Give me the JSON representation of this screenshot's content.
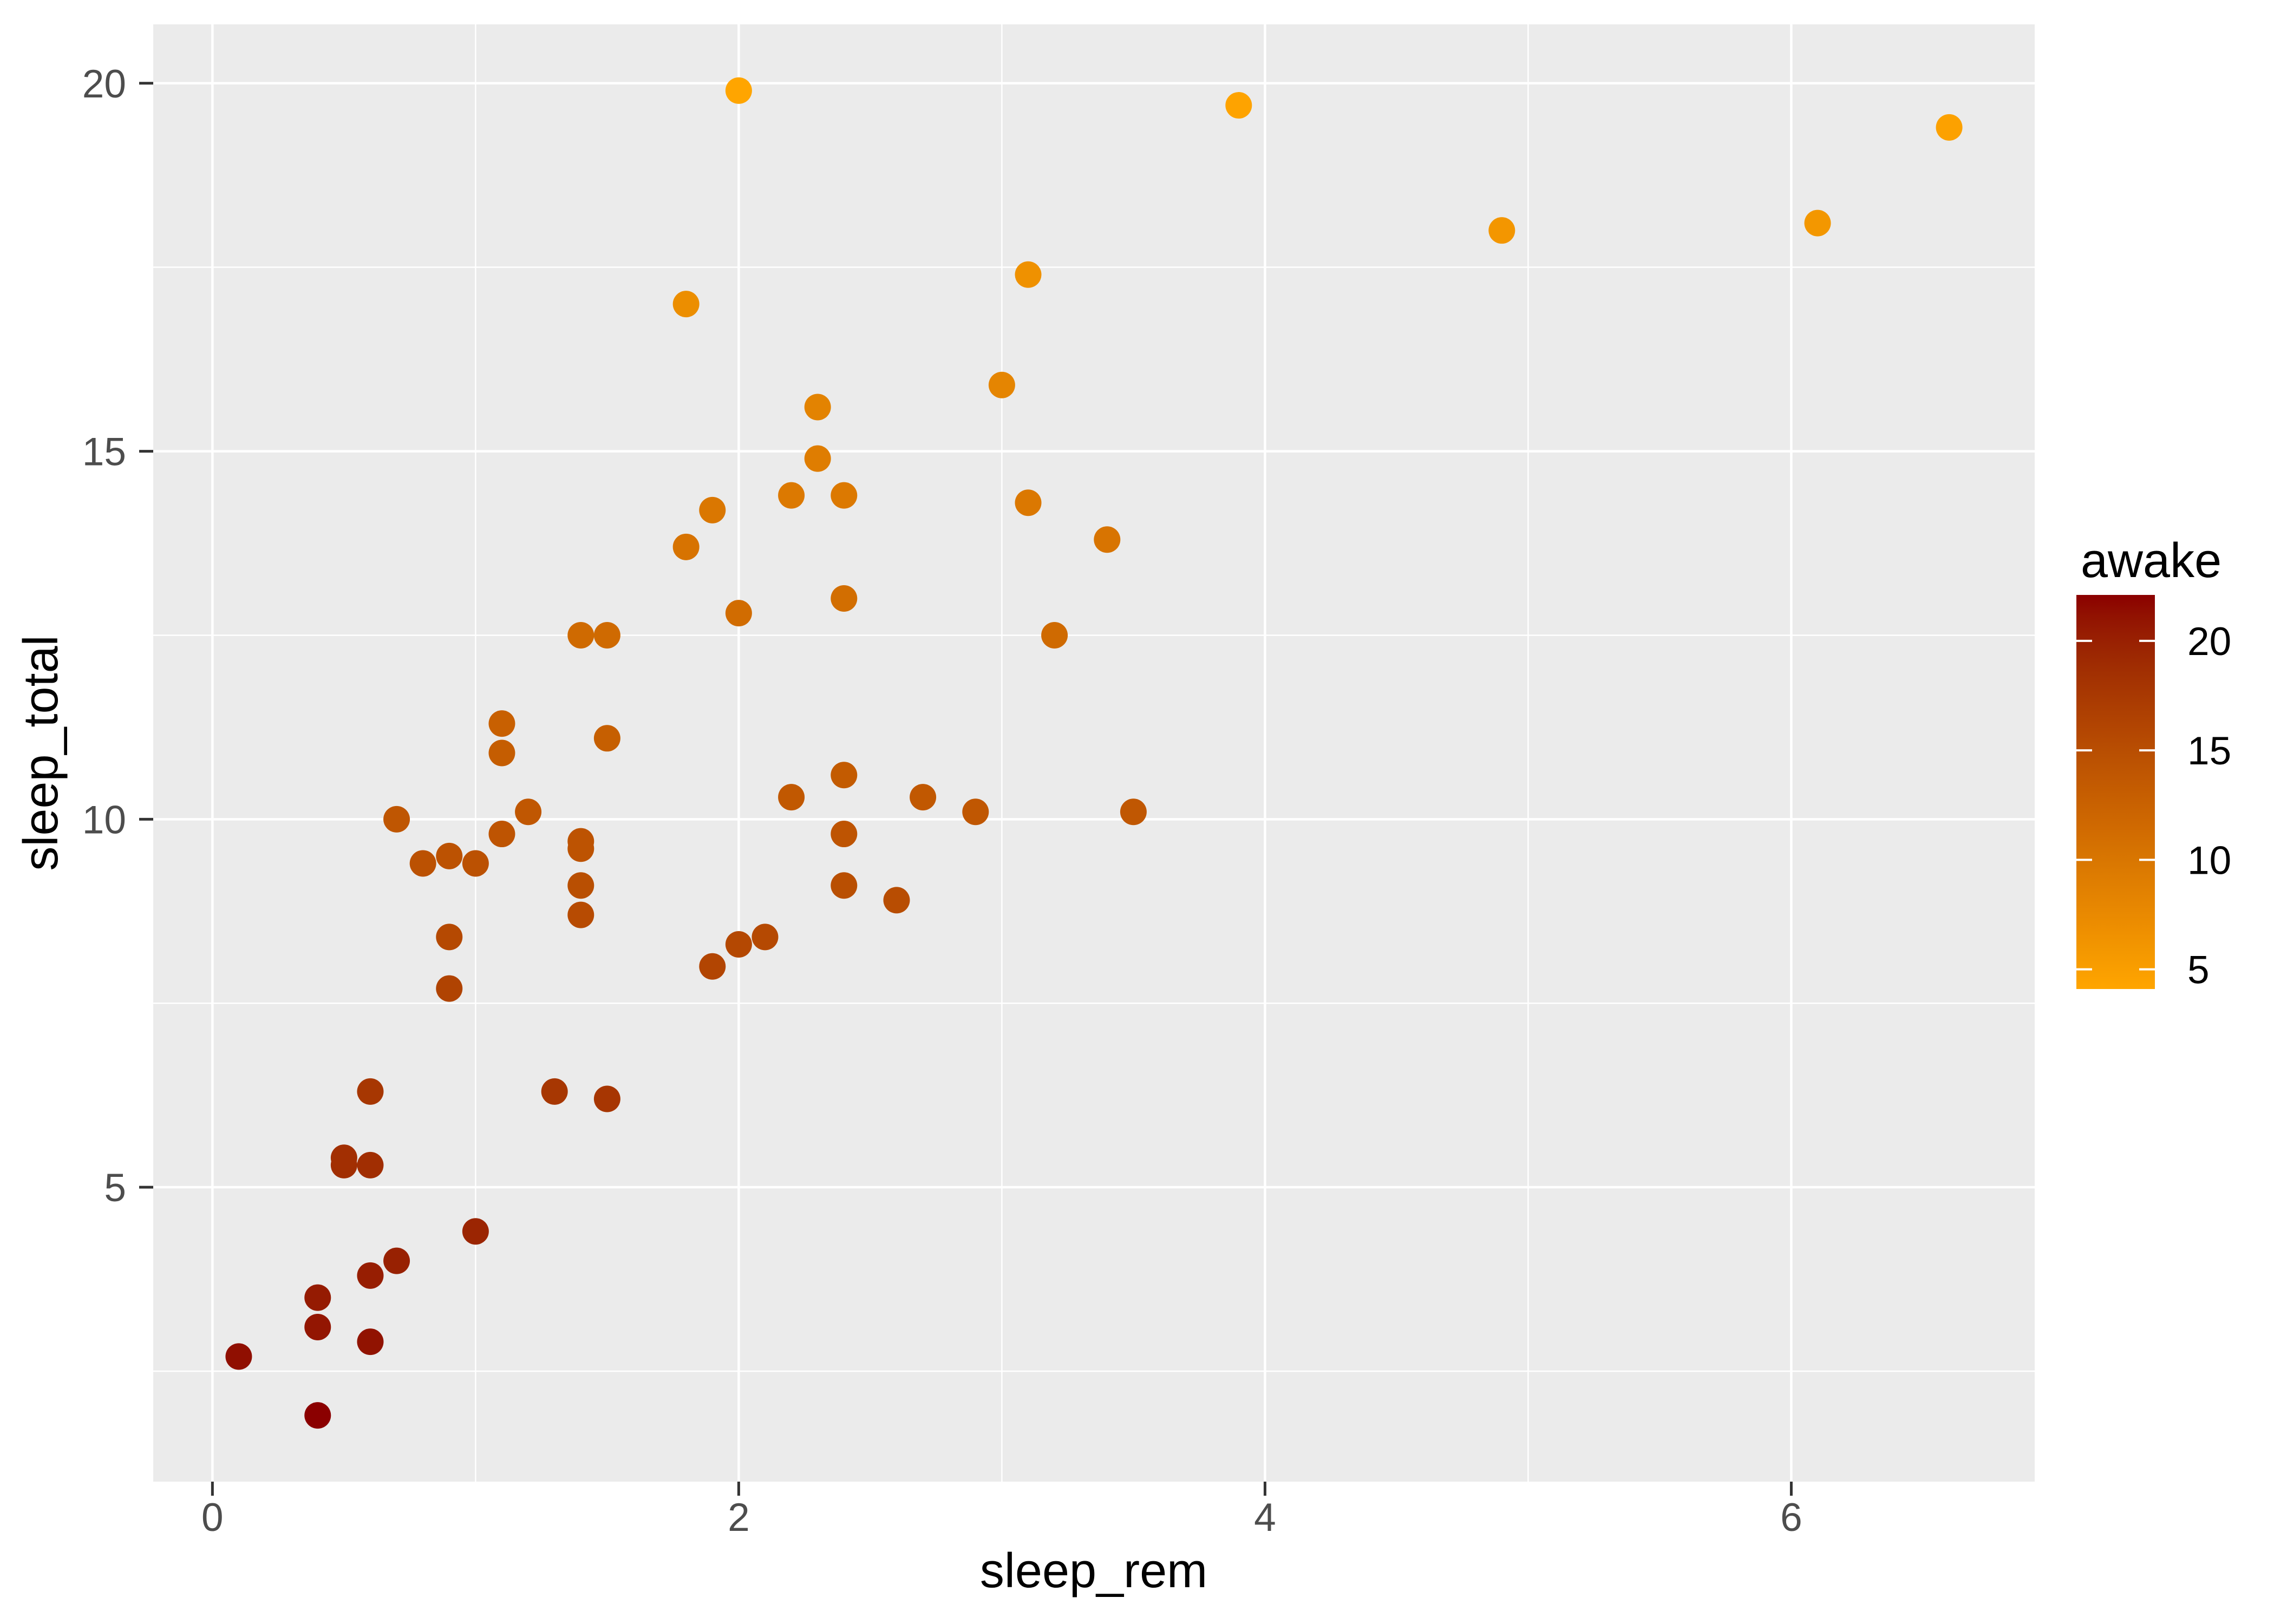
{
  "chart_data": {
    "type": "scatter",
    "title": "",
    "xlabel": "sleep_rem",
    "ylabel": "sleep_total",
    "xlim": [
      -0.225,
      6.925
    ],
    "ylim": [
      1.0,
      20.8
    ],
    "x_major_ticks": [
      0,
      2,
      4,
      6
    ],
    "x_minor_ticks": [
      1,
      3,
      5
    ],
    "y_major_ticks": [
      5,
      10,
      15,
      20
    ],
    "y_minor_ticks": [
      2.5,
      7.5,
      12.5,
      17.5
    ],
    "grid": "on",
    "legend": {
      "title": "awake",
      "position": "right",
      "style": "colorbar",
      "ticks": [
        20,
        15,
        10,
        5
      ],
      "domain": [
        4.1,
        22.1
      ],
      "low_color": "#FFA500",
      "high_color": "#8B0000"
    },
    "series": [
      {
        "name": "points",
        "points": [
          {
            "x": 1.8,
            "y": 17.0,
            "awake": 7.0
          },
          {
            "x": 2.4,
            "y": 14.4,
            "awake": 9.6
          },
          {
            "x": 2.3,
            "y": 14.9,
            "awake": 9.1
          },
          {
            "x": 0.7,
            "y": 4.0,
            "awake": 20.0
          },
          {
            "x": 2.2,
            "y": 14.4,
            "awake": 9.6
          },
          {
            "x": 1.4,
            "y": 8.7,
            "awake": 15.3
          },
          {
            "x": 2.9,
            "y": 10.1,
            "awake": 13.9
          },
          {
            "x": 0.6,
            "y": 5.3,
            "awake": 18.7
          },
          {
            "x": 0.8,
            "y": 9.4,
            "awake": 14.6
          },
          {
            "x": 0.7,
            "y": 10.0,
            "awake": 14.0
          },
          {
            "x": 1.5,
            "y": 12.5,
            "awake": 11.5
          },
          {
            "x": 2.2,
            "y": 10.3,
            "awake": 13.7
          },
          {
            "x": 2.0,
            "y": 8.3,
            "awake": 15.7
          },
          {
            "x": 1.4,
            "y": 9.1,
            "awake": 14.9
          },
          {
            "x": 3.1,
            "y": 17.4,
            "awake": 6.6
          },
          {
            "x": 0.5,
            "y": 5.3,
            "awake": 18.7
          },
          {
            "x": 4.9,
            "y": 18.0,
            "awake": 6.0
          },
          {
            "x": 3.9,
            "y": 19.7,
            "awake": 4.3
          },
          {
            "x": 0.6,
            "y": 2.9,
            "awake": 21.1
          },
          {
            "x": 0.4,
            "y": 3.1,
            "awake": 20.9
          },
          {
            "x": 3.5,
            "y": 10.1,
            "awake": 13.9
          },
          {
            "x": 1.1,
            "y": 10.9,
            "awake": 13.1
          },
          {
            "x": 3.2,
            "y": 12.5,
            "awake": 11.5
          },
          {
            "x": 1.1,
            "y": 9.8,
            "awake": 14.2
          },
          {
            "x": 0.4,
            "y": 1.9,
            "awake": 22.1
          },
          {
            "x": 0.1,
            "y": 2.7,
            "awake": 21.35
          },
          {
            "x": 1.5,
            "y": 6.2,
            "awake": 17.8
          },
          {
            "x": 0.6,
            "y": 6.3,
            "awake": 17.7
          },
          {
            "x": 1.9,
            "y": 8.0,
            "awake": 16.0
          },
          {
            "x": 0.9,
            "y": 9.5,
            "awake": 14.5
          },
          {
            "x": 6.6,
            "y": 19.4,
            "awake": 4.6
          },
          {
            "x": 1.2,
            "y": 10.1,
            "awake": 13.9
          },
          {
            "x": 1.9,
            "y": 14.2,
            "awake": 9.8
          },
          {
            "x": 3.1,
            "y": 14.3,
            "awake": 9.7
          },
          {
            "x": 1.4,
            "y": 12.5,
            "awake": 11.5
          },
          {
            "x": 2.0,
            "y": 19.9,
            "awake": 4.1
          },
          {
            "x": 0.9,
            "y": 7.7,
            "awake": 16.3
          },
          {
            "x": 0.9,
            "y": 8.4,
            "awake": 15.6
          },
          {
            "x": 2.4,
            "y": 13.0,
            "awake": 11.0
          },
          {
            "x": 1.4,
            "y": 9.6,
            "awake": 14.4
          },
          {
            "x": 2.1,
            "y": 8.4,
            "awake": 15.6
          },
          {
            "x": 1.1,
            "y": 11.3,
            "awake": 12.7
          },
          {
            "x": 2.4,
            "y": 10.6,
            "awake": 13.4
          },
          {
            "x": 3.4,
            "y": 13.8,
            "awake": 10.2
          },
          {
            "x": 3.0,
            "y": 15.9,
            "awake": 8.1
          },
          {
            "x": 2.0,
            "y": 12.8,
            "awake": 11.2
          },
          {
            "x": 2.4,
            "y": 9.1,
            "awake": 14.9
          },
          {
            "x": 1.0,
            "y": 4.4,
            "awake": 19.6
          },
          {
            "x": 2.3,
            "y": 15.6,
            "awake": 8.4
          },
          {
            "x": 2.6,
            "y": 8.9,
            "awake": 15.1
          },
          {
            "x": 1.3,
            "y": 6.3,
            "awake": 17.7
          },
          {
            "x": 2.4,
            "y": 9.8,
            "awake": 14.2
          },
          {
            "x": 1.0,
            "y": 9.4,
            "awake": 14.6
          },
          {
            "x": 2.7,
            "y": 10.3,
            "awake": 13.7
          },
          {
            "x": 1.4,
            "y": 9.7,
            "awake": 14.3
          },
          {
            "x": 0.4,
            "y": 3.5,
            "awake": 20.5
          },
          {
            "x": 1.5,
            "y": 11.1,
            "awake": 12.9
          },
          {
            "x": 6.1,
            "y": 18.1,
            "awake": 5.9
          },
          {
            "x": 0.5,
            "y": 5.4,
            "awake": 18.6
          },
          {
            "x": 0.6,
            "y": 3.8,
            "awake": 20.2
          },
          {
            "x": 1.8,
            "y": 13.7,
            "awake": 10.3
          }
        ]
      }
    ]
  },
  "style": {
    "panel_bg": "#EBEBEB",
    "grid_color": "#FFFFFF",
    "axis_text_color": "#4D4D4D",
    "tick_mark_color": "#333333",
    "title_color": "#000000",
    "point_radius": 24.5
  }
}
